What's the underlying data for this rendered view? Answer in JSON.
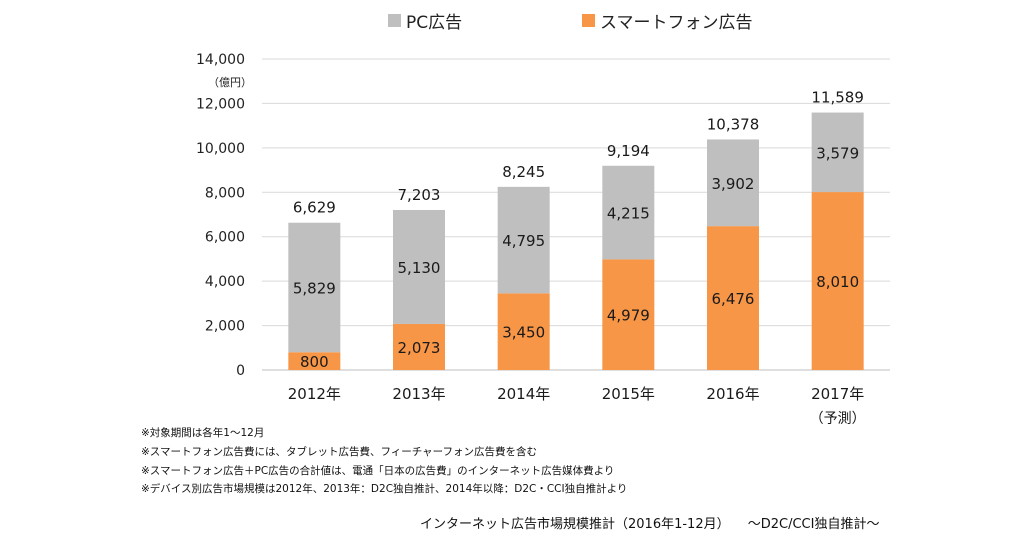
{
  "chart_data": {
    "type": "bar",
    "stacked": true,
    "categories": [
      "2012年",
      "2013年",
      "2014年",
      "2015年",
      "2016年",
      "2017年"
    ],
    "category_notes": [
      "",
      "",
      "",
      "",
      "",
      "（予測）"
    ],
    "series": [
      {
        "name": "スマートフォン広告",
        "color": "#f79646",
        "values": [
          800,
          2073,
          3450,
          4979,
          6476,
          8010
        ]
      },
      {
        "name": "PC広告",
        "color": "#bfbfbf",
        "values": [
          5829,
          5130,
          4795,
          4215,
          3902,
          3579
        ]
      }
    ],
    "totals": [
      6629,
      7203,
      8245,
      9194,
      10378,
      11589
    ],
    "y_unit": "（億円）",
    "ylim": [
      0,
      14000
    ],
    "yticks": [
      0,
      2000,
      4000,
      6000,
      8000,
      10000,
      12000,
      14000
    ],
    "grid": true,
    "legend_position": "top",
    "legend_order": [
      "PC広告",
      "スマートフォン広告"
    ]
  },
  "footnotes": [
    "※対象期間は各年1～12月",
    "※スマートフォン広告費には、タブレット広告費、フィーチャーフォン広告費を含む",
    "※スマートフォン広告＋PC広告の合計値は、電通「日本の広告費」のインターネット広告媒体費より",
    "※デバイス別広告市場規模は2012年、2013年：D2C独自推計、2014年以降：D2C・CCI独自推計より"
  ],
  "source": {
    "title": "インターネット広告市場規模推計（2016年1-12月）",
    "method": "～D2C/CCI独自推計～"
  }
}
